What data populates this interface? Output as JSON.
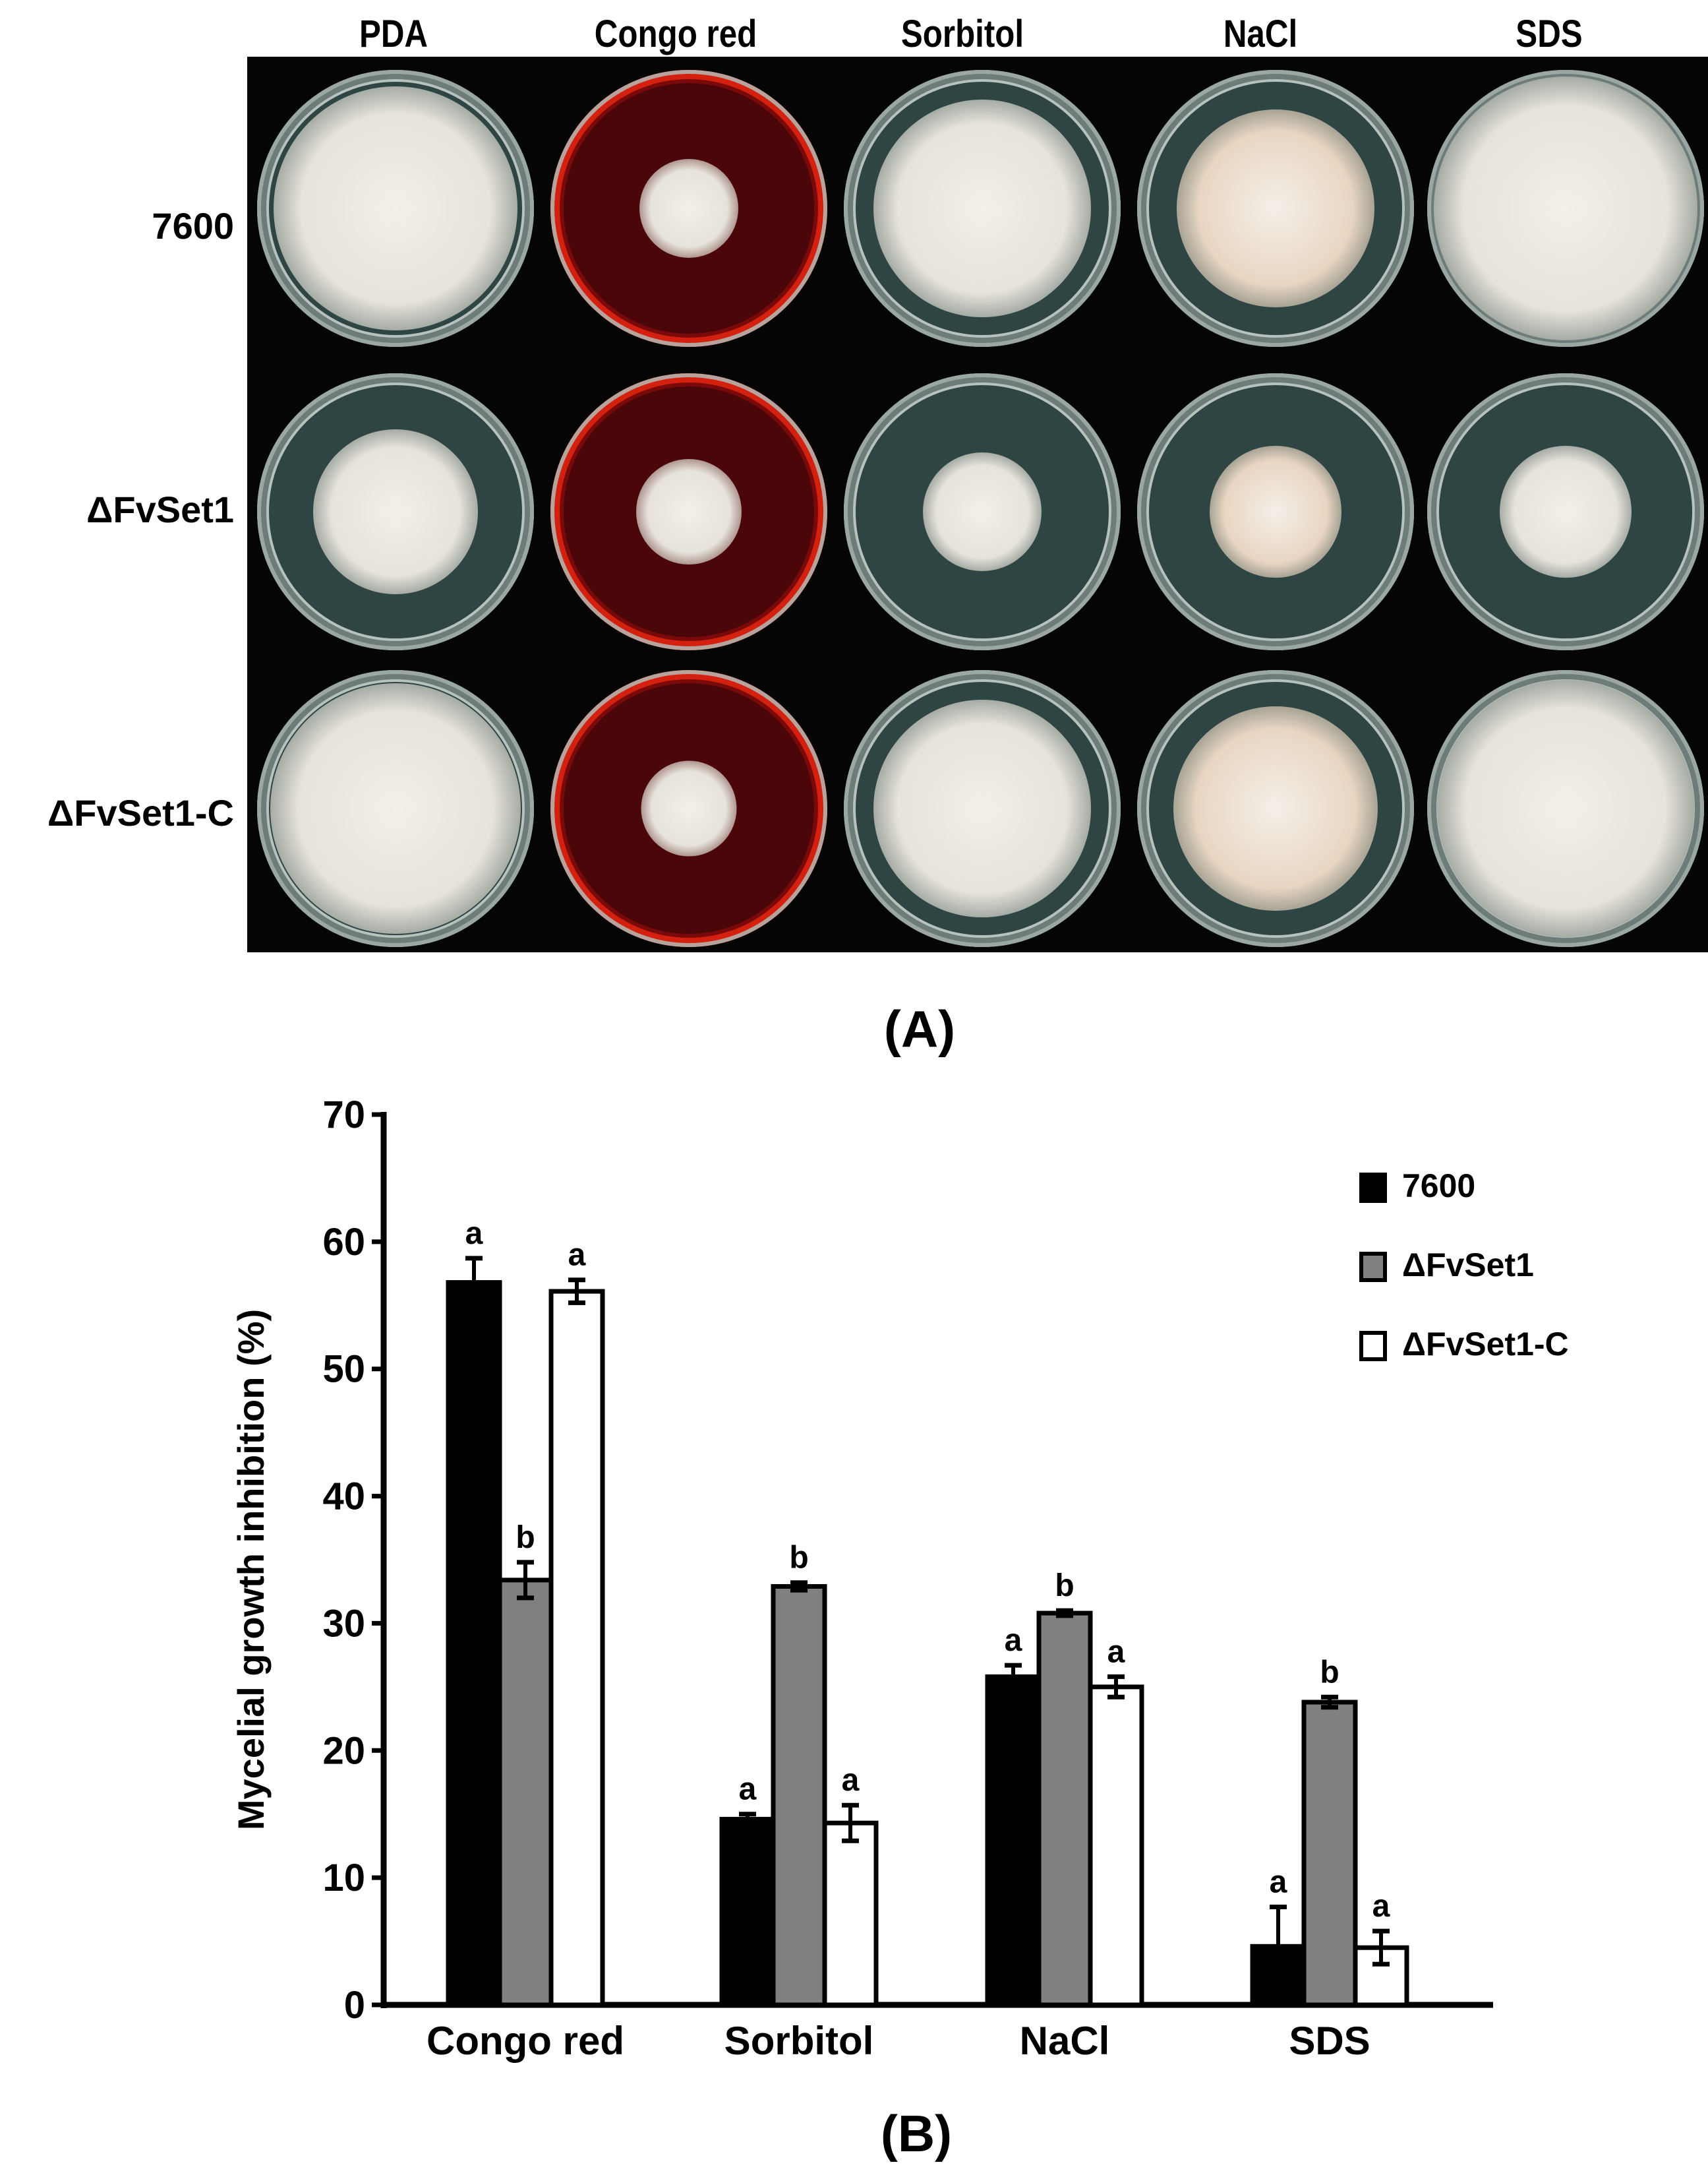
{
  "panel_a": {
    "label": "(A)",
    "columns": [
      "PDA",
      "Congo red",
      "Sorbitol",
      "NaCl",
      "SDS"
    ],
    "rows": [
      "7600",
      "ΔFvSet1",
      "ΔFvSet1-C"
    ],
    "colors": {
      "background": "#050505",
      "agar": "#2f4543",
      "congo_red_agar": "#4a0608",
      "congo_red_rim": "#d4200f",
      "colony": "#e6e3da",
      "colony_nacl": "#e8d6c2"
    }
  },
  "panel_b": {
    "label": "(B)"
  },
  "chart_data": {
    "type": "bar",
    "title": "",
    "xlabel": "",
    "ylabel": "Mycelial growth inhibition (%)",
    "ylim": [
      0,
      70
    ],
    "yticks": [
      0,
      10,
      20,
      30,
      40,
      50,
      60,
      70
    ],
    "grid": false,
    "legend_position": "upper right",
    "categories": [
      "Congo red",
      "Sorbitol",
      "NaCl",
      "SDS"
    ],
    "series": [
      {
        "name": "7600",
        "color": "#000000",
        "values": [
          56.8,
          14.6,
          25.8,
          4.6
        ],
        "errors": [
          1.9,
          0.4,
          0.9,
          3.1
        ],
        "significance": [
          "a",
          "a",
          "a",
          "a"
        ]
      },
      {
        "name": "ΔFvSet1",
        "color": "#808080",
        "values": [
          33.4,
          32.9,
          30.8,
          23.8
        ],
        "errors": [
          1.4,
          0.3,
          0.2,
          0.4
        ],
        "significance": [
          "b",
          "b",
          "b",
          "b"
        ]
      },
      {
        "name": "ΔFvSet1-C",
        "color": "#ffffff",
        "values": [
          56.1,
          14.3,
          25.0,
          4.5
        ],
        "errors": [
          0.9,
          1.4,
          0.8,
          1.3
        ],
        "significance": [
          "a",
          "a",
          "a",
          "a"
        ]
      }
    ]
  }
}
